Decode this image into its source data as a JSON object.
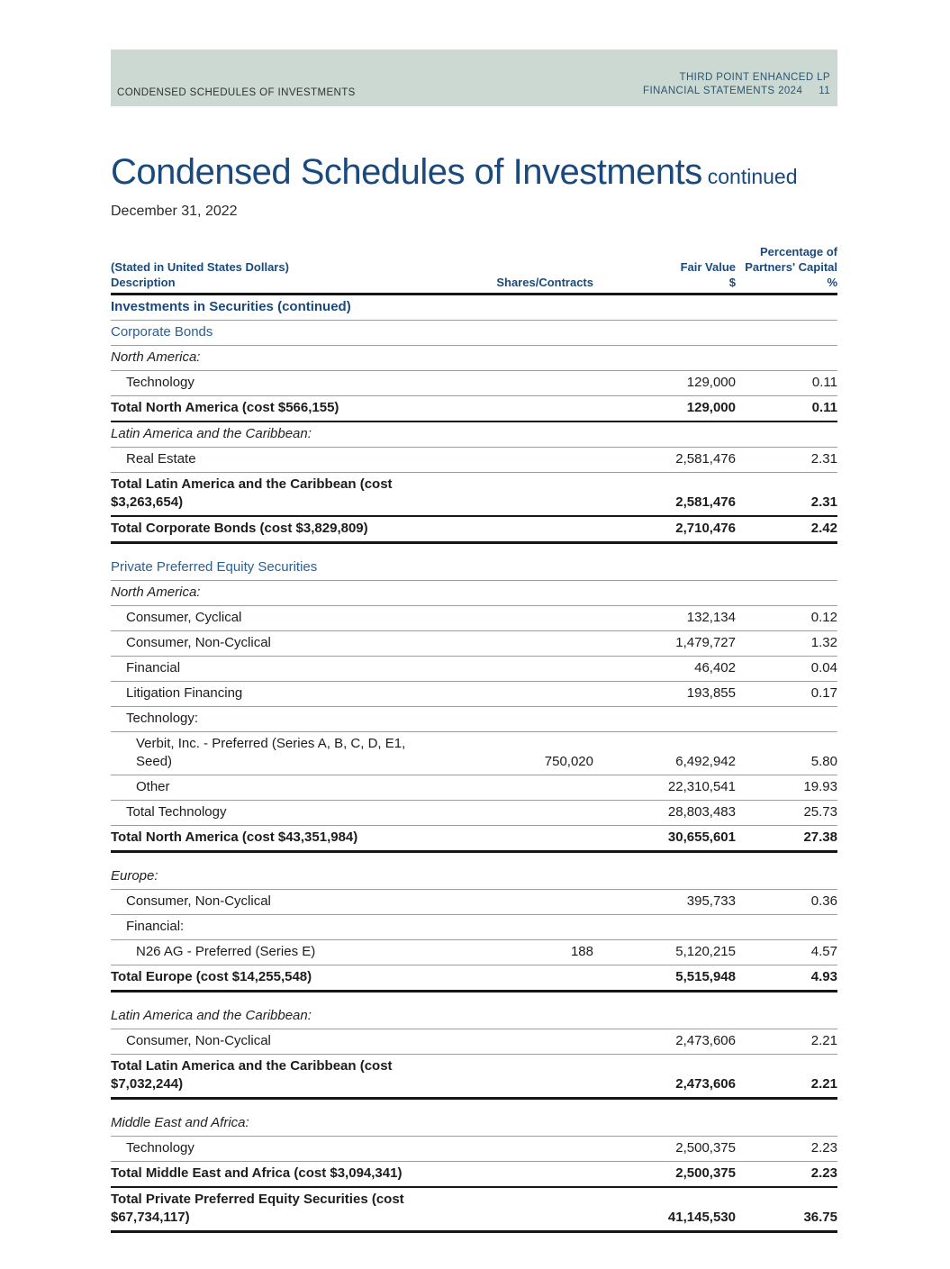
{
  "page": {
    "band": {
      "left": "CONDENSED SCHEDULES OF INVESTMENTS",
      "right_line1": "THIRD POINT ENHANCED LP",
      "right_line2": "FINANCIAL STATEMENTS 2024",
      "page_number": "11"
    },
    "title": "Condensed Schedules of Investments",
    "title_suffix": "continued",
    "date": "December 31, 2022"
  },
  "colors": {
    "navy": "#1a4a7d",
    "section_blue": "#2a5f95",
    "band_bg": "#ccd9d2",
    "band_right": "#2b566f",
    "rule_gray": "#9aa0a0",
    "rule_dark": "#161616"
  },
  "table": {
    "header": {
      "col_desc_line1": "(Stated in United States Dollars)",
      "col_desc_line2": "Description",
      "col_shares": "Shares/Contracts",
      "col_fair_line1": "Fair Value",
      "col_fair_line2": "$",
      "col_pct_line1": "Percentage of",
      "col_pct_line2": "Partners' Capital",
      "col_pct_line3": "%"
    },
    "rows": [
      {
        "type": "bold_blue",
        "label": "Investments in Securities (continued)",
        "shares": "",
        "fair": "",
        "pct": ""
      },
      {
        "type": "blue",
        "label": "Corporate Bonds",
        "shares": "",
        "fair": "",
        "pct": ""
      },
      {
        "type": "region",
        "label": "North America:",
        "shares": "",
        "fair": "",
        "pct": ""
      },
      {
        "type": "item",
        "label": "Technology",
        "shares": "",
        "fair": "129,000",
        "pct": "0.11"
      },
      {
        "type": "total",
        "label": "Total North America (cost $566,155)",
        "shares": "",
        "fair": "129,000",
        "pct": "0.11"
      },
      {
        "type": "region",
        "label": "Latin America and the Caribbean:",
        "shares": "",
        "fair": "",
        "pct": ""
      },
      {
        "type": "item",
        "label": "Real Estate",
        "shares": "",
        "fair": "2,581,476",
        "pct": "2.31"
      },
      {
        "type": "total",
        "label": "Total Latin America and the Caribbean (cost\n$3,263,654)",
        "shares": "",
        "fair": "2,581,476",
        "pct": "2.31"
      },
      {
        "type": "total_end",
        "label": "Total Corporate Bonds (cost $3,829,809)",
        "shares": "",
        "fair": "2,710,476",
        "pct": "2.42"
      },
      {
        "type": "spacer"
      },
      {
        "type": "blue",
        "label": "Private Preferred Equity Securities",
        "shares": "",
        "fair": "",
        "pct": ""
      },
      {
        "type": "region",
        "label": "North America:",
        "shares": "",
        "fair": "",
        "pct": ""
      },
      {
        "type": "item",
        "label": "Consumer, Cyclical",
        "shares": "",
        "fair": "132,134",
        "pct": "0.12"
      },
      {
        "type": "item",
        "label": "Consumer, Non-Cyclical",
        "shares": "",
        "fair": "1,479,727",
        "pct": "1.32"
      },
      {
        "type": "item",
        "label": "Financial",
        "shares": "",
        "fair": "46,402",
        "pct": "0.04"
      },
      {
        "type": "item",
        "label": "Litigation Financing",
        "shares": "",
        "fair": "193,855",
        "pct": "0.17"
      },
      {
        "type": "subhead",
        "label": "Technology:",
        "shares": "",
        "fair": "",
        "pct": ""
      },
      {
        "type": "item2",
        "label": "Verbit, Inc. - Preferred (Series A, B, C, D, E1,\nSeed)",
        "shares": "750,020",
        "fair": "6,492,942",
        "pct": "5.80"
      },
      {
        "type": "item2",
        "label": "Other",
        "shares": "",
        "fair": "22,310,541",
        "pct": "19.93"
      },
      {
        "type": "item",
        "label": "Total Technology",
        "shares": "",
        "fair": "28,803,483",
        "pct": "25.73"
      },
      {
        "type": "total_end",
        "label": "Total North America (cost $43,351,984)",
        "shares": "",
        "fair": "30,655,601",
        "pct": "27.38"
      },
      {
        "type": "spacer"
      },
      {
        "type": "region",
        "label": "Europe:",
        "shares": "",
        "fair": "",
        "pct": ""
      },
      {
        "type": "item",
        "label": "Consumer, Non-Cyclical",
        "shares": "",
        "fair": "395,733",
        "pct": "0.36"
      },
      {
        "type": "subhead",
        "label": "Financial:",
        "shares": "",
        "fair": "",
        "pct": ""
      },
      {
        "type": "item2",
        "label": "N26 AG - Preferred (Series E)",
        "shares": "188",
        "fair": "5,120,215",
        "pct": "4.57"
      },
      {
        "type": "total_end",
        "label": "Total Europe (cost $14,255,548)",
        "shares": "",
        "fair": "5,515,948",
        "pct": "4.93"
      },
      {
        "type": "spacer"
      },
      {
        "type": "region",
        "label": "Latin America and the Caribbean:",
        "shares": "",
        "fair": "",
        "pct": ""
      },
      {
        "type": "item",
        "label": "Consumer, Non-Cyclical",
        "shares": "",
        "fair": "2,473,606",
        "pct": "2.21"
      },
      {
        "type": "total_end",
        "label": "Total Latin America and the Caribbean (cost\n$7,032,244)",
        "shares": "",
        "fair": "2,473,606",
        "pct": "2.21"
      },
      {
        "type": "spacer"
      },
      {
        "type": "region",
        "label": "Middle East and Africa:",
        "shares": "",
        "fair": "",
        "pct": ""
      },
      {
        "type": "item",
        "label": "Technology",
        "shares": "",
        "fair": "2,500,375",
        "pct": "2.23"
      },
      {
        "type": "total",
        "label": "Total Middle East and Africa (cost $3,094,341)",
        "shares": "",
        "fair": "2,500,375",
        "pct": "2.23"
      },
      {
        "type": "total_end",
        "label": "Total Private Preferred Equity Securities (cost $67,734,117)",
        "shares": "",
        "fair": "41,145,530",
        "pct": "36.75"
      }
    ]
  }
}
